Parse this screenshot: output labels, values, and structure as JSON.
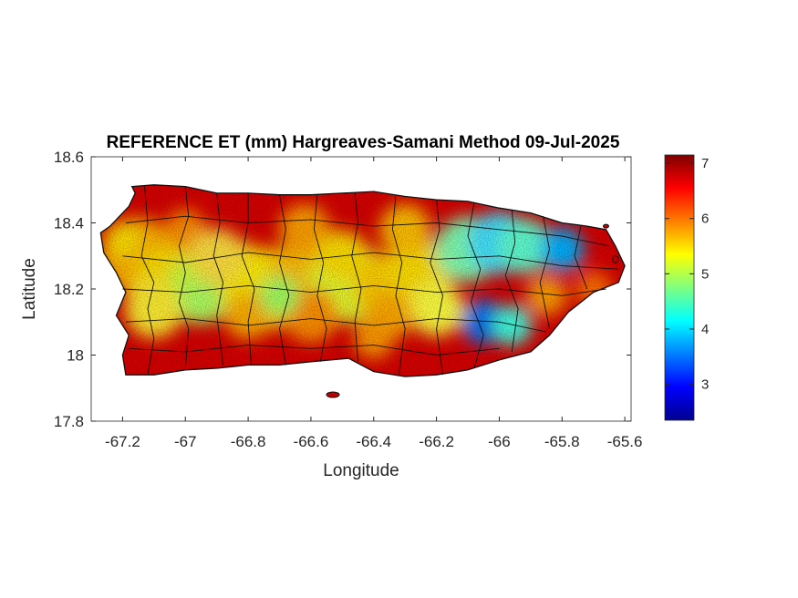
{
  "chart_data": {
    "type": "heatmap",
    "title": "REFERENCE ET (mm) Hargreaves-Samani Method  09-Jul-2025",
    "xlabel": "Longitude",
    "ylabel": "Latitude",
    "xlim": [
      -67.3,
      -65.58
    ],
    "ylim": [
      17.8,
      18.6
    ],
    "xticks": [
      -67.2,
      -67,
      -66.8,
      -66.6,
      -66.4,
      -66.2,
      -66,
      -65.8,
      -65.6
    ],
    "xtick_labels": [
      "-67.2",
      "-67",
      "-66.8",
      "-66.6",
      "-66.4",
      "-66.2",
      "-66",
      "-65.8",
      "-65.6"
    ],
    "yticks": [
      17.8,
      18,
      18.2,
      18.4,
      18.6
    ],
    "ytick_labels": [
      "17.8",
      "18",
      "18.2",
      "18.4",
      "18.6"
    ],
    "colorbar": {
      "colormap": "jet",
      "clim": [
        2.35,
        7.15
      ],
      "ticks": [
        3,
        4,
        5,
        6,
        7
      ],
      "tick_labels": [
        "3",
        "4",
        "5",
        "6",
        "7"
      ]
    },
    "grid": false
  }
}
